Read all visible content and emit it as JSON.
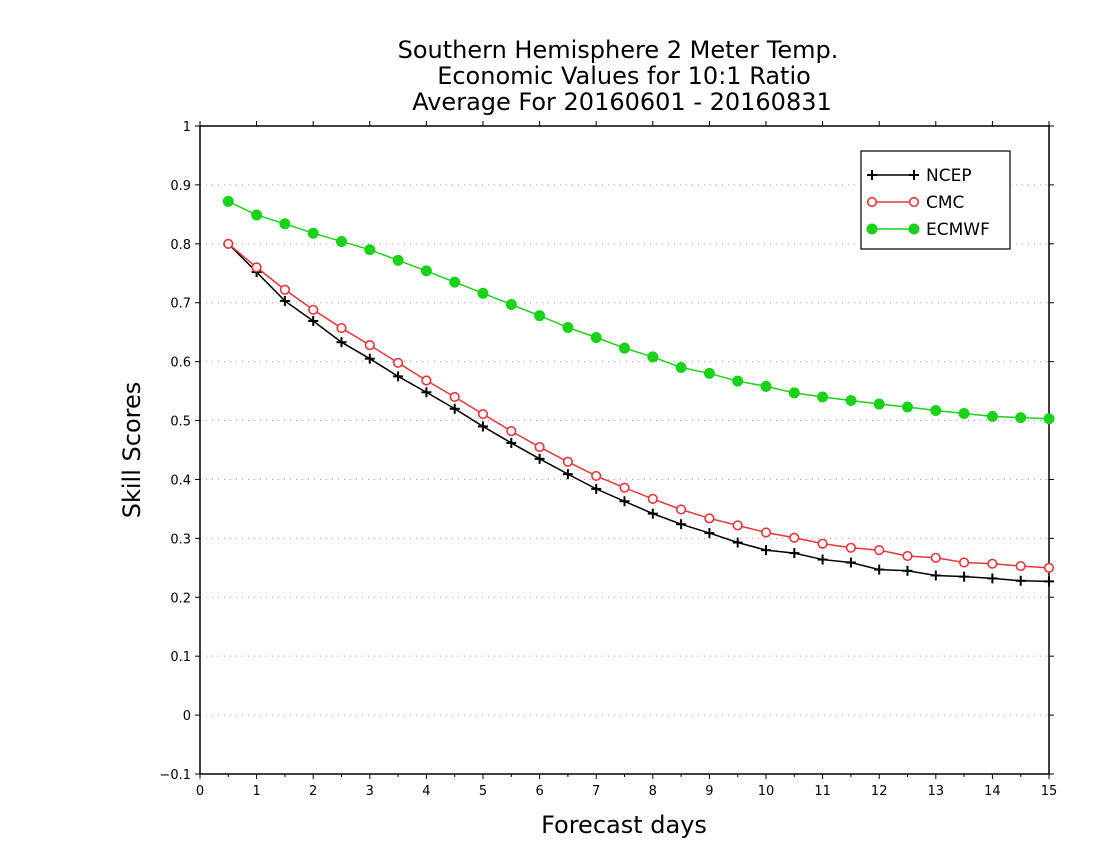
{
  "chart_data": {
    "type": "line",
    "title_lines": [
      "Southern Hemisphere 2 Meter Temp.",
      "Economic Values for 10:1 Ratio",
      "Average For 20160601 - 20160831"
    ],
    "xlabel": "Forecast days",
    "ylabel": "Skill Scores",
    "xlim": [
      0,
      15
    ],
    "ylim": [
      -0.1,
      1
    ],
    "xticks": [
      "0",
      "1",
      "2",
      "3",
      "4",
      "5",
      "6",
      "7",
      "8",
      "9",
      "10",
      "11",
      "12",
      "13",
      "14",
      "15"
    ],
    "yticks": [
      "−0.1",
      "0",
      "0.1",
      "0.2",
      "0.3",
      "0.4",
      "0.5",
      "0.6",
      "0.7",
      "0.8",
      "0.9",
      "1"
    ],
    "grid": true,
    "legend_position": "top-right",
    "x": [
      0.5,
      1,
      1.5,
      2,
      2.5,
      3,
      3.5,
      4,
      4.5,
      5,
      5.5,
      6,
      6.5,
      7,
      7.5,
      8,
      8.5,
      9,
      9.5,
      10,
      10.5,
      11,
      11.5,
      12,
      12.5,
      13,
      13.5,
      14,
      14.5,
      15
    ],
    "series": [
      {
        "name": "NCEP",
        "color": "#000000",
        "marker": "plus",
        "values": [
          0.8,
          0.752,
          0.703,
          0.669,
          0.633,
          0.605,
          0.575,
          0.548,
          0.52,
          0.49,
          0.462,
          0.435,
          0.409,
          0.384,
          0.363,
          0.342,
          0.324,
          0.309,
          0.293,
          0.28,
          0.275,
          0.264,
          0.259,
          0.247,
          0.245,
          0.237,
          0.235,
          0.232,
          0.228,
          0.227
        ]
      },
      {
        "name": "CMC",
        "color": "#e8353a",
        "marker": "open-circle",
        "values": [
          0.8,
          0.76,
          0.722,
          0.688,
          0.657,
          0.628,
          0.598,
          0.568,
          0.54,
          0.511,
          0.482,
          0.455,
          0.43,
          0.406,
          0.386,
          0.367,
          0.349,
          0.334,
          0.322,
          0.31,
          0.301,
          0.291,
          0.284,
          0.28,
          0.27,
          0.267,
          0.259,
          0.257,
          0.253,
          0.25
        ]
      },
      {
        "name": "ECMWF",
        "color": "#19d219",
        "marker": "filled-circle",
        "values": [
          0.872,
          0.849,
          0.834,
          0.818,
          0.804,
          0.79,
          0.772,
          0.754,
          0.735,
          0.716,
          0.697,
          0.678,
          0.658,
          0.641,
          0.623,
          0.608,
          0.59,
          0.58,
          0.567,
          0.558,
          0.547,
          0.54,
          0.534,
          0.528,
          0.523,
          0.517,
          0.512,
          0.507,
          0.505,
          0.503
        ]
      }
    ]
  }
}
